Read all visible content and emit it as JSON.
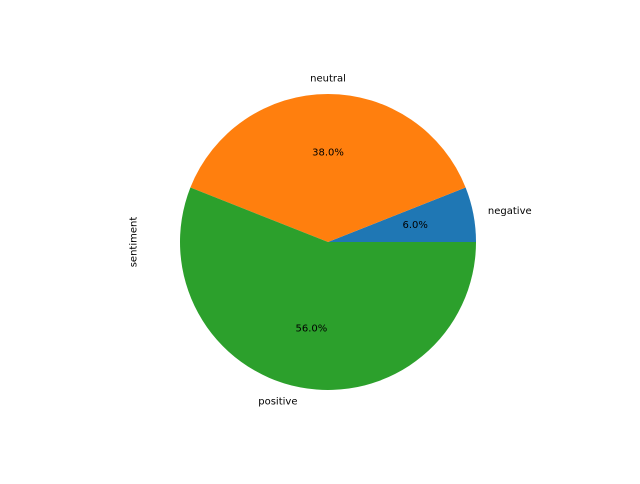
{
  "chart_data": {
    "type": "pie",
    "ylabel": "sentiment",
    "start_angle_deg": 0,
    "direction": "counterclockwise",
    "slices": [
      {
        "label": "negative",
        "value": 6.0,
        "pct_label": "6.0%",
        "color": "#1f77b4"
      },
      {
        "label": "neutral",
        "value": 38.0,
        "pct_label": "38.0%",
        "color": "#ff7f0e"
      },
      {
        "label": "positive",
        "value": 56.0,
        "pct_label": "56.0%",
        "color": "#2ca02c"
      }
    ]
  }
}
